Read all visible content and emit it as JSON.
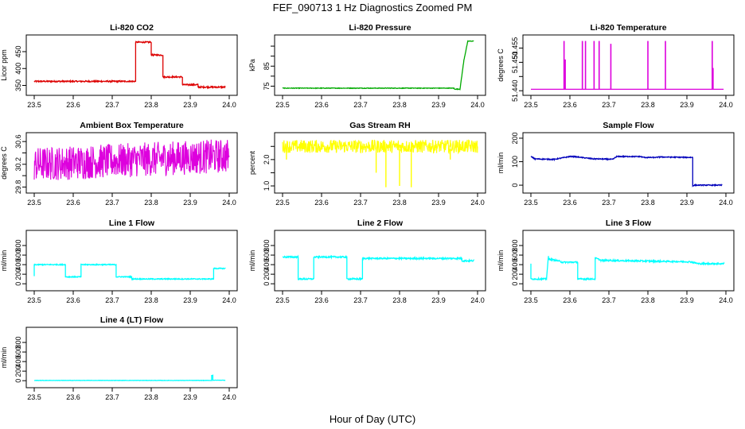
{
  "title": "FEF_090713  1 Hz Diagnostics Zoomed PM",
  "xlabel": "Hour of Day (UTC)",
  "chart_data": [
    {
      "type": "line",
      "title": "Li-820 CO2",
      "ylabel": "Licor ppm",
      "color": "#dd0000",
      "xlim": [
        23.5,
        24.0
      ],
      "ylim": [
        330,
        490
      ],
      "yticks": [
        350,
        400,
        450
      ],
      "xticks": [
        "23.5",
        "23.6",
        "23.7",
        "23.8",
        "23.9",
        "24.0"
      ],
      "x": [
        23.5,
        23.65,
        23.76,
        23.76,
        23.8,
        23.8,
        23.83,
        23.83,
        23.88,
        23.88,
        23.92,
        23.92,
        23.99
      ],
      "y": [
        362,
        362,
        362,
        478,
        478,
        440,
        440,
        375,
        375,
        352,
        352,
        345,
        345
      ],
      "noise": 2
    },
    {
      "type": "line",
      "title": "Li-820 Pressure",
      "ylabel": "kPa",
      "color": "#00aa00",
      "xlim": [
        23.5,
        24.0
      ],
      "ylim": [
        72,
        99
      ],
      "yticks": [
        75,
        80,
        85,
        90,
        95
      ],
      "yticklabels": [
        "75",
        "",
        "85",
        "",
        ""
      ],
      "xticks": [
        "23.5",
        "23.6",
        "23.7",
        "23.8",
        "23.9",
        "24.0"
      ],
      "x": [
        23.5,
        23.94,
        23.94,
        23.955,
        23.965,
        23.975,
        23.99
      ],
      "y": [
        74,
        74,
        73.5,
        73.5,
        88,
        97.5,
        97.5
      ],
      "noise": 0.15
    },
    {
      "type": "line",
      "title": "Li-820 Temperature",
      "ylabel": "degrees C",
      "color": "#dd00dd",
      "xlim": [
        23.5,
        24.0
      ],
      "ylim": [
        51.4395,
        51.4585
      ],
      "yticks": [
        51.44,
        51.445,
        51.45,
        51.455
      ],
      "yticklabels": [
        "51.440",
        "",
        "51.450",
        "51.455"
      ],
      "xticks": [
        "23.5",
        "23.6",
        "23.7",
        "23.8",
        "23.9",
        "24.0"
      ],
      "base": 51.4405,
      "spikes": [
        {
          "x": 23.585,
          "y": 51.4575
        },
        {
          "x": 23.588,
          "y": 51.451
        },
        {
          "x": 23.632,
          "y": 51.4575
        },
        {
          "x": 23.64,
          "y": 51.4575
        },
        {
          "x": 23.662,
          "y": 51.4575
        },
        {
          "x": 23.675,
          "y": 51.4575
        },
        {
          "x": 23.705,
          "y": 51.4565
        },
        {
          "x": 23.8,
          "y": 51.4575
        },
        {
          "x": 23.845,
          "y": 51.4575
        },
        {
          "x": 23.965,
          "y": 51.4575
        },
        {
          "x": 23.967,
          "y": 51.448
        }
      ]
    },
    {
      "type": "line",
      "title": "Ambient Box Temperature",
      "ylabel": "degrees C",
      "color": "#dd00dd",
      "xlim": [
        23.5,
        24.0
      ],
      "ylim": [
        29.75,
        30.7
      ],
      "yticks": [
        29.8,
        30.0,
        30.2,
        30.4,
        30.6
      ],
      "yticklabels": [
        "29.8",
        "",
        "30.2",
        "",
        "30.6"
      ],
      "xticks": [
        "23.5",
        "23.6",
        "23.7",
        "23.8",
        "23.9",
        "24.0"
      ],
      "x": [
        23.5,
        24.0
      ],
      "y": [
        30.2,
        30.35
      ],
      "noise": 0.3
    },
    {
      "type": "line",
      "title": "Gas Stream RH",
      "ylabel": "percent",
      "color": "#ffff00",
      "xlim": [
        23.5,
        24.0
      ],
      "ylim": [
        0.85,
        2.9
      ],
      "yticks": [
        1.0,
        1.5,
        2.0,
        2.5
      ],
      "yticklabels": [
        "1.0",
        "",
        "2.0",
        ""
      ],
      "xticks": [
        "23.5",
        "23.6",
        "23.7",
        "23.8",
        "23.9",
        "24.0"
      ],
      "x": [
        23.5,
        24.0
      ],
      "y": [
        2.5,
        2.5
      ],
      "noise": 0.25,
      "dips": [
        {
          "x": 23.51,
          "y": 2.0
        },
        {
          "x": 23.74,
          "y": 1.5
        },
        {
          "x": 23.765,
          "y": 0.95
        },
        {
          "x": 23.8,
          "y": 1.0
        },
        {
          "x": 23.83,
          "y": 0.95
        },
        {
          "x": 23.93,
          "y": 2.0
        }
      ]
    },
    {
      "type": "line",
      "title": "Sample Flow",
      "ylabel": "ml/min",
      "color": "#0000bb",
      "xlim": [
        23.5,
        24.0
      ],
      "ylim": [
        -20,
        210
      ],
      "yticks": [
        0,
        100,
        200
      ],
      "xticks": [
        "23.5",
        "23.6",
        "23.7",
        "23.8",
        "23.9",
        "24.0"
      ],
      "x": [
        23.5,
        23.51,
        23.55,
        23.56,
        23.6,
        23.61,
        23.66,
        23.67,
        23.71,
        23.72,
        23.78,
        23.79,
        23.82,
        23.83,
        23.915,
        23.915,
        23.92,
        23.99
      ],
      "y": [
        122,
        112,
        110,
        110,
        122,
        122,
        112,
        112,
        110,
        122,
        122,
        118,
        118,
        120,
        118,
        -2,
        0,
        0
      ],
      "noise": 2
    },
    {
      "type": "line",
      "title": "Line 1 Flow",
      "ylabel": "ml/min",
      "color": "#00ffff",
      "xlim": [
        23.5,
        24.0
      ],
      "ylim": [
        -80,
        1050
      ],
      "yticks": [
        0,
        200,
        400,
        600,
        800
      ],
      "xticks": [
        "23.5",
        "23.6",
        "23.7",
        "23.8",
        "23.9",
        "24.0"
      ],
      "x": [
        23.5,
        23.5,
        23.58,
        23.58,
        23.62,
        23.62,
        23.71,
        23.71,
        23.75,
        23.75,
        23.96,
        23.96,
        23.99
      ],
      "y": [
        160,
        400,
        400,
        145,
        145,
        400,
        400,
        145,
        145,
        100,
        100,
        320,
        320
      ],
      "noise": 10
    },
    {
      "type": "line",
      "title": "Line 2 Flow",
      "ylabel": "ml/min",
      "color": "#00ffff",
      "xlim": [
        23.5,
        24.0
      ],
      "ylim": [
        -80,
        1050
      ],
      "yticks": [
        0,
        200,
        400,
        600,
        800
      ],
      "xticks": [
        "23.5",
        "23.6",
        "23.7",
        "23.8",
        "23.9",
        "24.0"
      ],
      "x": [
        23.5,
        23.54,
        23.54,
        23.58,
        23.58,
        23.665,
        23.665,
        23.705,
        23.705,
        23.96,
        23.96,
        23.99
      ],
      "y": [
        560,
        560,
        100,
        100,
        560,
        560,
        100,
        100,
        530,
        530,
        480,
        480
      ],
      "noise": 15
    },
    {
      "type": "line",
      "title": "Line 3 Flow",
      "ylabel": "ml/min",
      "color": "#00ffff",
      "xlim": [
        23.5,
        24.0
      ],
      "ylim": [
        -80,
        1050
      ],
      "yticks": [
        0,
        200,
        400,
        600,
        800
      ],
      "xticks": [
        "23.5",
        "23.6",
        "23.7",
        "23.8",
        "23.9",
        "24.0"
      ],
      "x": [
        23.5,
        23.5,
        23.5,
        23.54,
        23.545,
        23.545,
        23.57,
        23.58,
        23.62,
        23.62,
        23.665,
        23.665,
        23.68,
        23.91,
        23.93,
        23.995
      ],
      "y": [
        420,
        200,
        100,
        100,
        580,
        520,
        480,
        450,
        450,
        100,
        100,
        540,
        490,
        460,
        420,
        420
      ],
      "noise": 15
    },
    {
      "type": "line",
      "title": "Line 4 (LT) Flow",
      "ylabel": "ml/min",
      "color": "#00ffff",
      "xlim": [
        23.5,
        24.0
      ],
      "ylim": [
        -80,
        1050
      ],
      "yticks": [
        0,
        200,
        400,
        600,
        800
      ],
      "xticks": [
        "23.5",
        "23.6",
        "23.7",
        "23.8",
        "23.9",
        "24.0"
      ],
      "x": [
        23.5,
        23.955,
        23.955,
        23.958,
        23.958,
        23.99
      ],
      "y": [
        5,
        5,
        110,
        110,
        10,
        10
      ],
      "noise": 3
    }
  ]
}
